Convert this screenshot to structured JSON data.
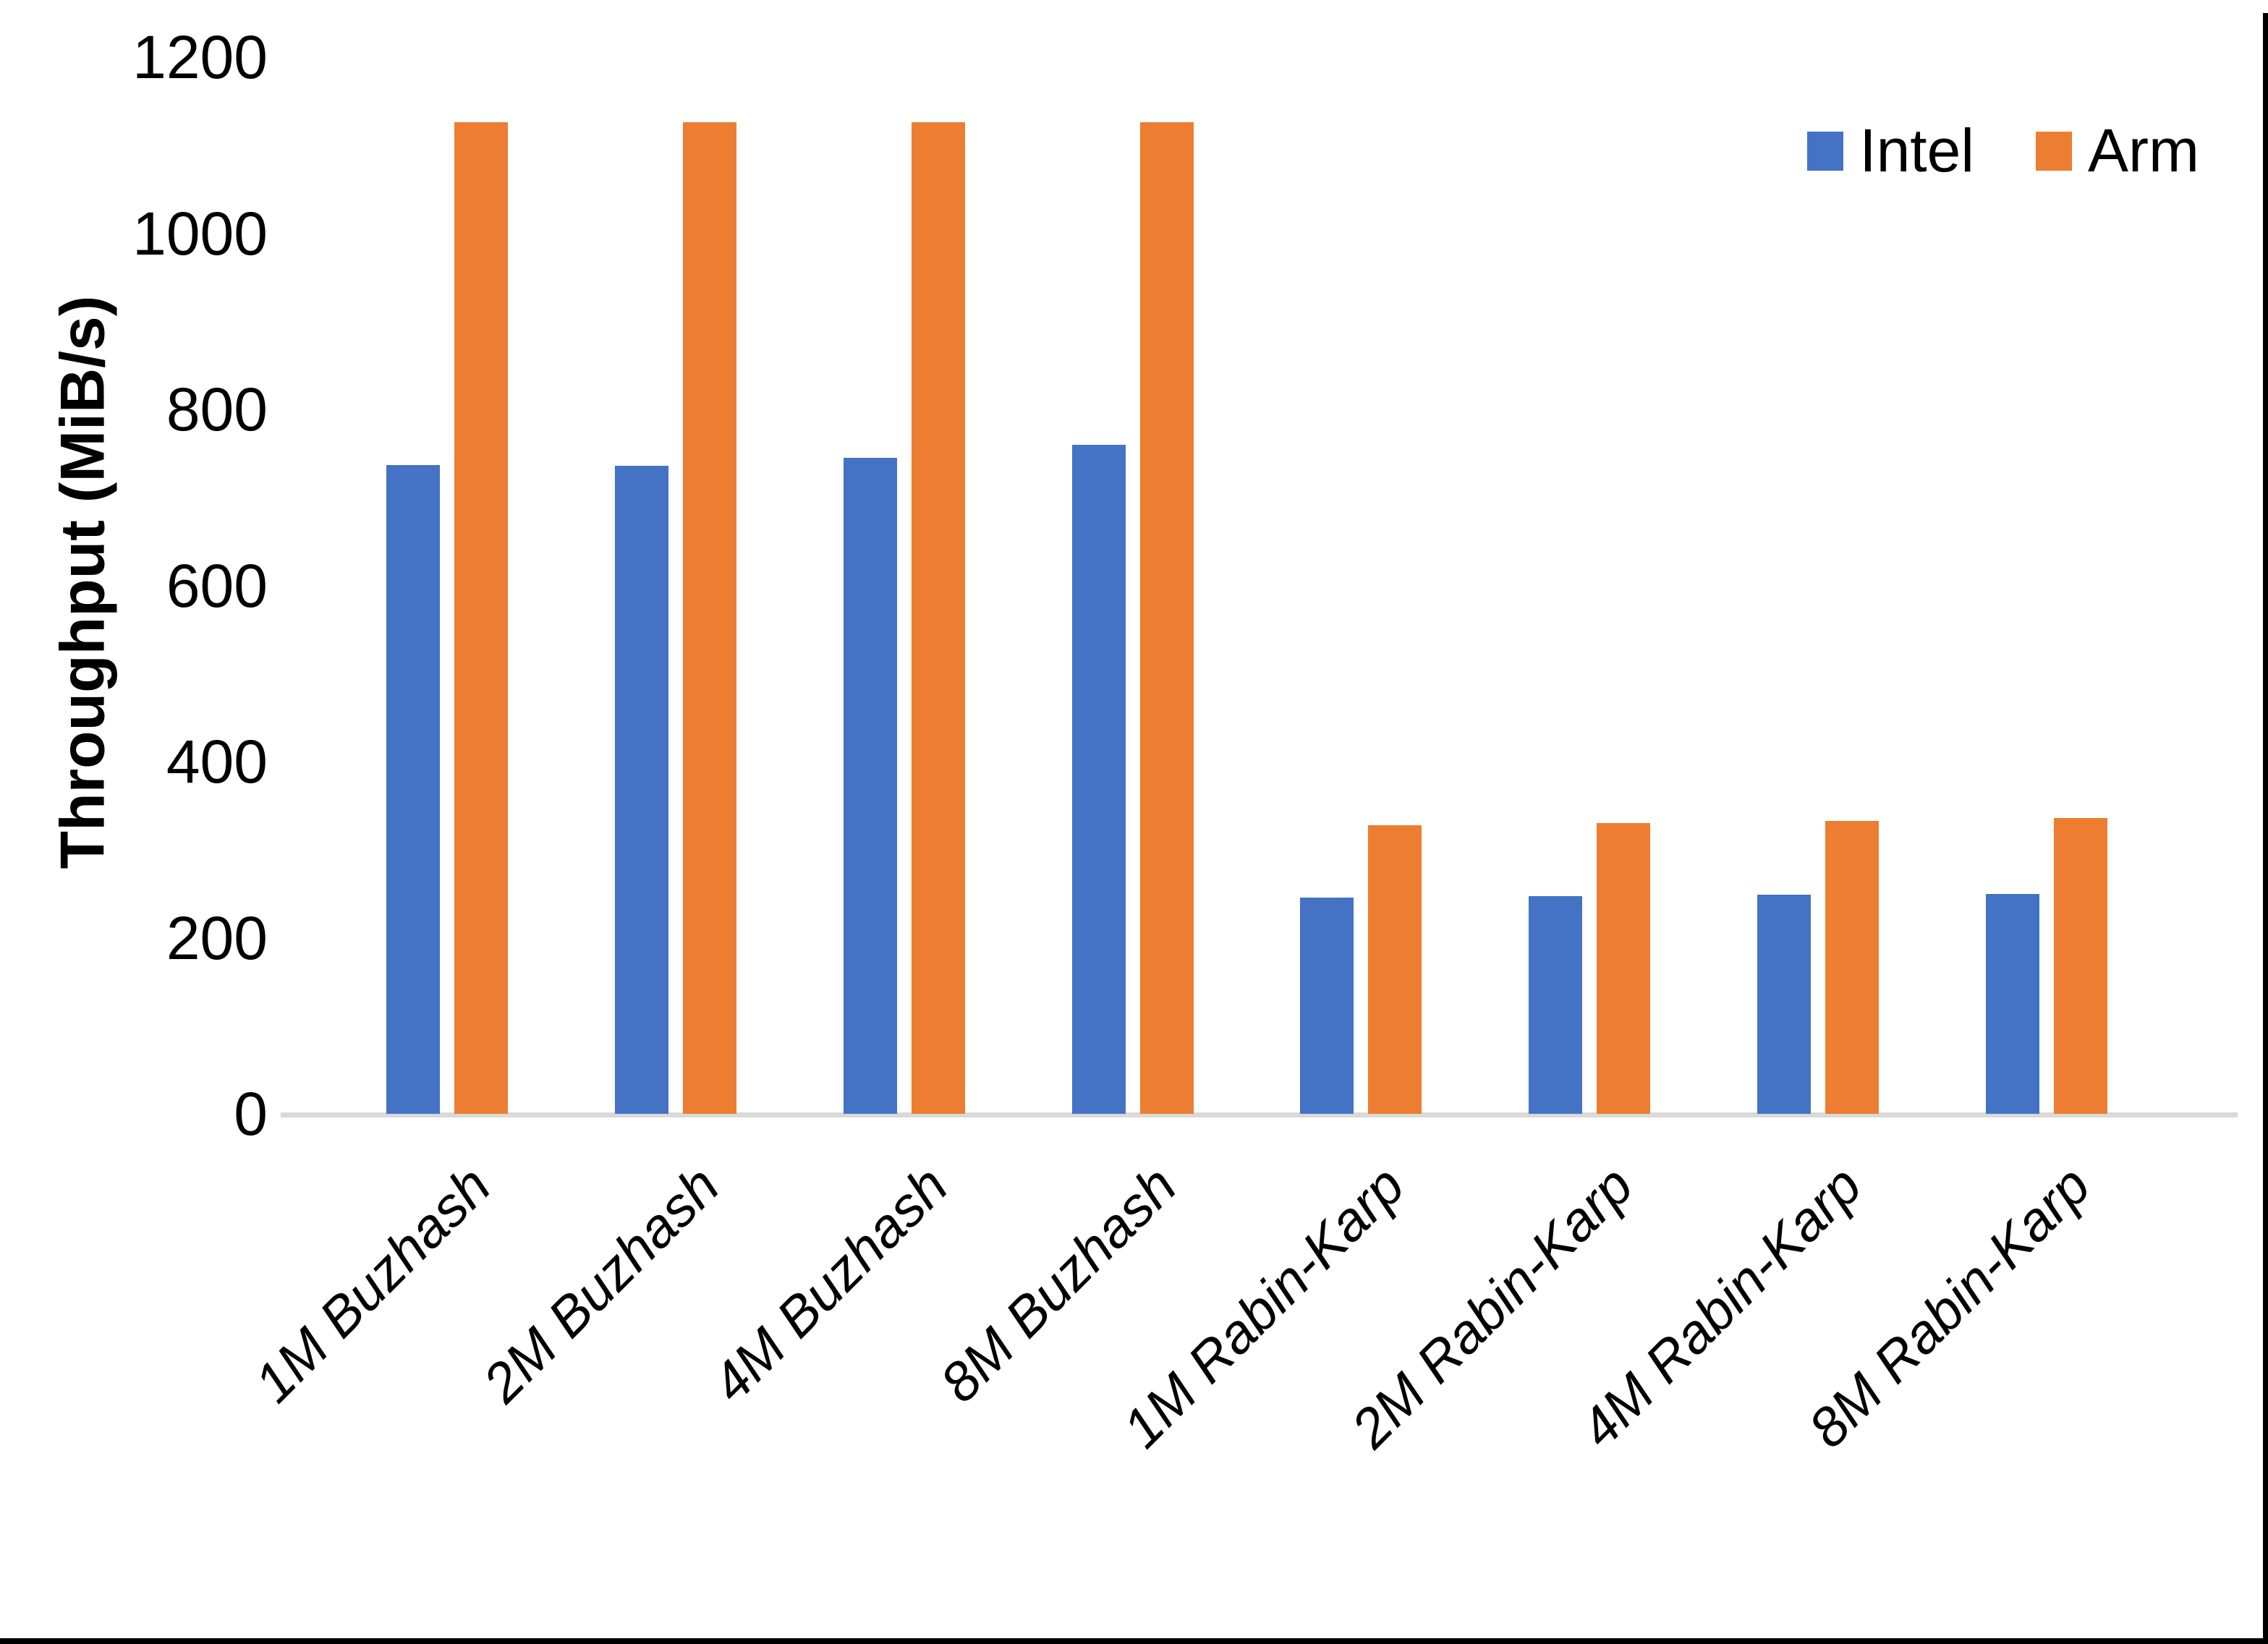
{
  "chart_data": {
    "type": "bar",
    "title": "",
    "xlabel": "",
    "ylabel": "Throughput (MiB/s)",
    "ylim": [
      0,
      1200
    ],
    "yticks": [
      0,
      200,
      400,
      600,
      800,
      1000,
      1200
    ],
    "grid": false,
    "legend_position": "top-right",
    "axis_line_color": "#d9d9d9",
    "categories": [
      "1M Buzhash",
      "2M Buzhash",
      "4M Buzhash",
      "8M Buzhash",
      "1M Rabin-Karp",
      "2M Rabin-Karp",
      "4M Rabin-Karp",
      "8M Rabin-Karp"
    ],
    "series": [
      {
        "name": "Intel",
        "color": "#4472C4",
        "values": [
          737,
          736,
          745,
          760,
          246,
          247,
          249,
          250
        ]
      },
      {
        "name": "Arm",
        "color": "#ED7D31",
        "values": [
          1126,
          1126,
          1126,
          1126,
          328,
          330,
          333,
          336
        ]
      }
    ]
  },
  "frame": {
    "border_color": "#000000"
  }
}
